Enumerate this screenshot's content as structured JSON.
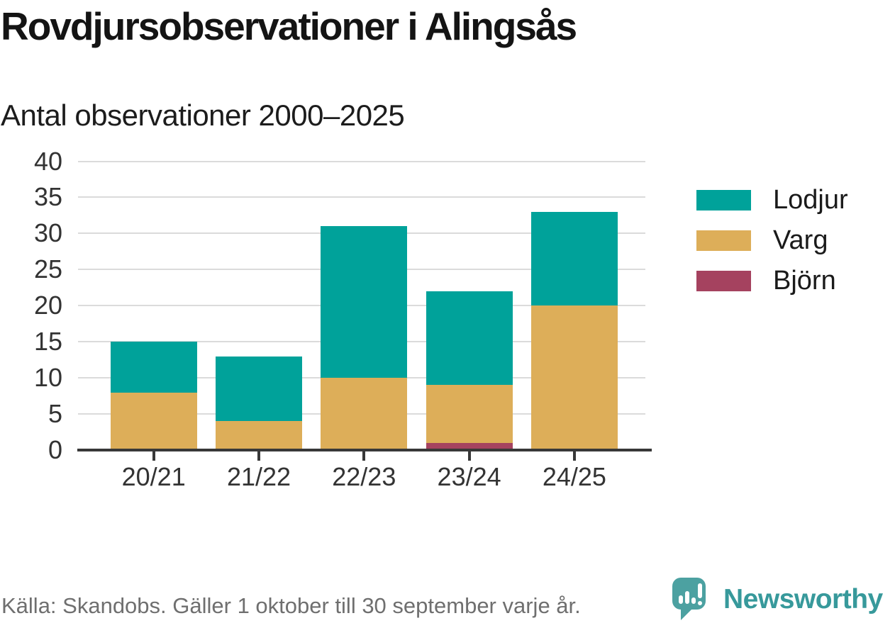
{
  "header": {
    "title": "Rovdjursobservationer i Alingsås",
    "subtitle": "Antal observationer 2000–2025"
  },
  "chart_data": {
    "type": "bar",
    "stacked": true,
    "title": "Rovdjursobservationer i Alingsås",
    "subtitle": "Antal observationer 2000–2025",
    "categories": [
      "20/21",
      "21/22",
      "22/23",
      "23/24",
      "24/25"
    ],
    "series": [
      {
        "name": "Lodjur",
        "color": "#00a29a",
        "values": [
          7,
          9,
          21,
          13,
          13
        ]
      },
      {
        "name": "Varg",
        "color": "#ddae59",
        "values": [
          8,
          4,
          10,
          8,
          20
        ]
      },
      {
        "name": "Björn",
        "color": "#a5425f",
        "values": [
          0,
          0,
          0,
          1,
          0
        ]
      }
    ],
    "stack_order_bottom_to_top": [
      "Björn",
      "Varg",
      "Lodjur"
    ],
    "totals": [
      15,
      13,
      31,
      22,
      33
    ],
    "xlabel": "",
    "ylabel": "",
    "ylim": [
      0,
      40
    ],
    "yticks": [
      0,
      5,
      10,
      15,
      20,
      25,
      30,
      35,
      40
    ],
    "grid": true,
    "legend_position": "right"
  },
  "footer": {
    "source": "Källa: Skandobs. Gäller 1 oktober till 30 september varje år.",
    "brand": "Newsworthy"
  },
  "colors": {
    "lodjur": "#00a29a",
    "varg": "#ddae59",
    "bjorn": "#a5425f",
    "axis": "#383838",
    "gridline": "#dbdbdb",
    "tick_text": "#333333",
    "source_text": "#6f6f6f",
    "brand_teal": "#37999b"
  }
}
